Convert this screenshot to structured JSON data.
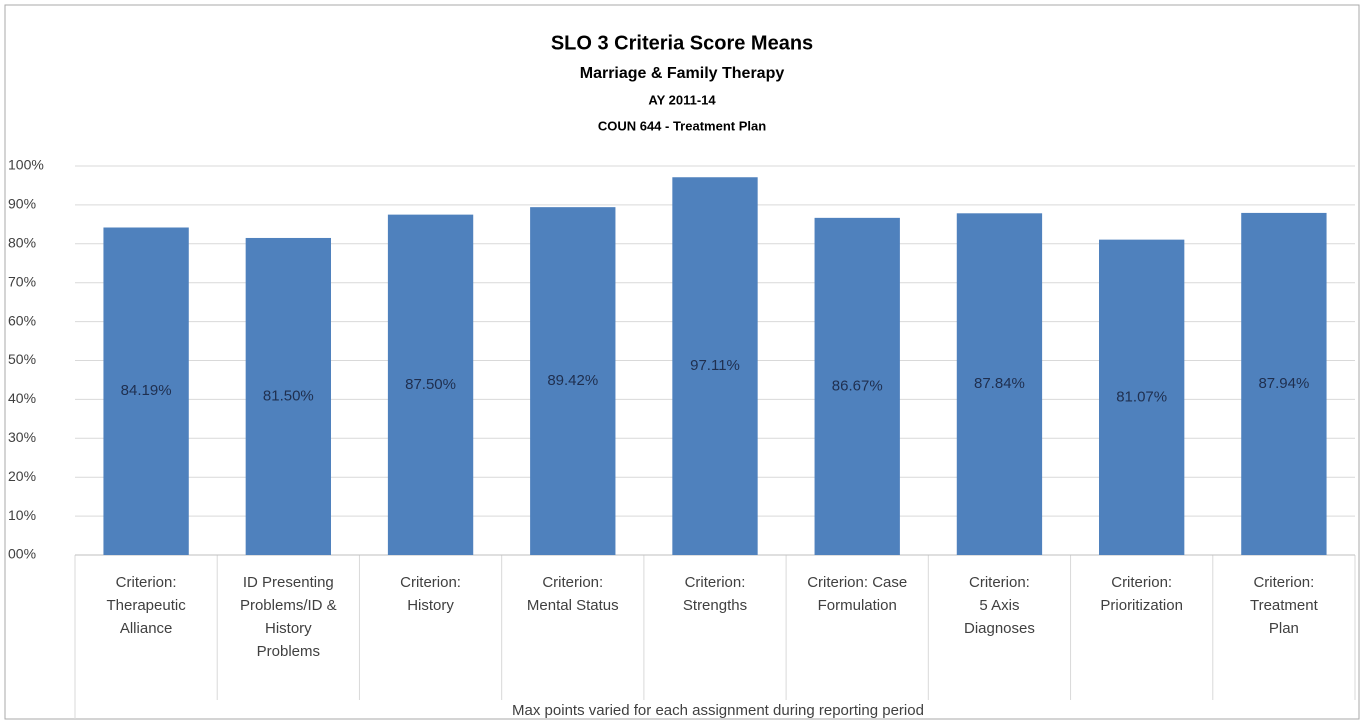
{
  "chart_data": {
    "type": "bar",
    "title": "SLO 3 Criteria Score Means",
    "subtitle": [
      "Marriage & Family Therapy",
      "AY 2011-14",
      "COUN 644 - Treatment Plan"
    ],
    "categories": [
      "Criterion:\nTherapeutic\nAlliance",
      "ID Presenting\nProblems/ID &\nHistory\nProblems",
      "Criterion:\nHistory",
      "Criterion:\nMental Status",
      "Criterion:\nStrengths",
      "Criterion: Case\nFormulation",
      "Criterion:\n5 Axis\nDiagnoses",
      "Criterion:\nPrioritization",
      "Criterion:\nTreatment\nPlan"
    ],
    "values": [
      84.19,
      81.5,
      87.5,
      89.42,
      97.11,
      86.67,
      87.84,
      81.07,
      87.94
    ],
    "value_labels": [
      "84.19%",
      "81.50%",
      "87.50%",
      "89.42%",
      "97.11%",
      "86.67%",
      "87.84%",
      "81.07%",
      "87.94%"
    ],
    "color": "#4f81bd",
    "ylim": [
      0,
      100
    ],
    "yticks": [
      {
        "value": 0,
        "label": "00%"
      },
      {
        "value": 10,
        "label": "10%"
      },
      {
        "value": 20,
        "label": "20%"
      },
      {
        "value": 30,
        "label": "30%"
      },
      {
        "value": 40,
        "label": "40%"
      },
      {
        "value": 50,
        "label": "50%"
      },
      {
        "value": 60,
        "label": "60%"
      },
      {
        "value": 70,
        "label": "70%"
      },
      {
        "value": 80,
        "label": "80%"
      },
      {
        "value": 90,
        "label": "90%"
      },
      {
        "value": 100,
        "label": "100%"
      }
    ],
    "grid": true,
    "xlabel": "Max points varied for each assignment during reporting period"
  }
}
